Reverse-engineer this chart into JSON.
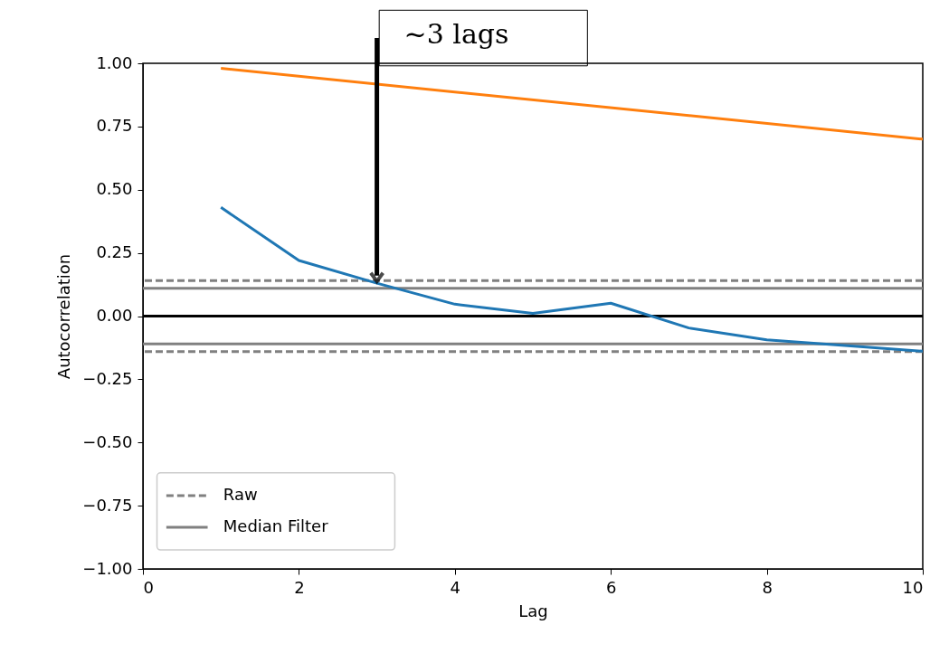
{
  "chart_data": {
    "type": "line",
    "xlabel": "Lag",
    "ylabel": "Autocorrelation",
    "xlim": [
      0,
      10
    ],
    "xticks": [
      0,
      2,
      4,
      6,
      8,
      10
    ],
    "ylim": [
      -1,
      1
    ],
    "yticks": [
      {
        "value": -1,
        "label": "−1.00"
      },
      {
        "value": -0.75,
        "label": "−0.75"
      },
      {
        "value": -0.5,
        "label": "−0.50"
      },
      {
        "value": -0.25,
        "label": "−0.25"
      },
      {
        "value": 0,
        "label": "0.00"
      },
      {
        "value": 0.25,
        "label": "0.25"
      },
      {
        "value": 0.5,
        "label": "0.50"
      },
      {
        "value": 0.75,
        "label": "0.75"
      },
      {
        "value": 1,
        "label": "1.00"
      }
    ],
    "series": [
      {
        "color": "#ff7f0e",
        "x": [
          1,
          10
        ],
        "values": [
          0.98,
          0.7
        ]
      },
      {
        "color": "#1f77b4",
        "x": [
          1,
          2,
          3,
          4,
          5,
          6,
          7,
          8,
          9,
          10
        ],
        "values": [
          0.43,
          0.22,
          0.13,
          0.047,
          0.011,
          0.051,
          -0.047,
          -0.094,
          -0.116,
          -0.139
        ]
      }
    ],
    "ref_lines": [
      {
        "axis": "y",
        "value": 0.14,
        "label": "Raw",
        "color": "#808080",
        "line_style": "dashed"
      },
      {
        "axis": "y",
        "value": 0.11,
        "label": "Median Filter",
        "color": "#808080",
        "line_style": "solid"
      },
      {
        "axis": "y",
        "value": -0.11,
        "color": "#808080",
        "line_style": "solid"
      },
      {
        "axis": "y",
        "value": -0.14,
        "color": "#808080",
        "line_style": "dashed"
      },
      {
        "axis": "y",
        "value": 0,
        "color": "#000000",
        "line_style": "solid"
      }
    ],
    "annotations": [
      {
        "text": "~3 lags",
        "x": 3,
        "y": 0.13
      }
    ],
    "legend": "bottom left",
    "grid": false,
    "line_style": "solid",
    "marker": "none"
  }
}
